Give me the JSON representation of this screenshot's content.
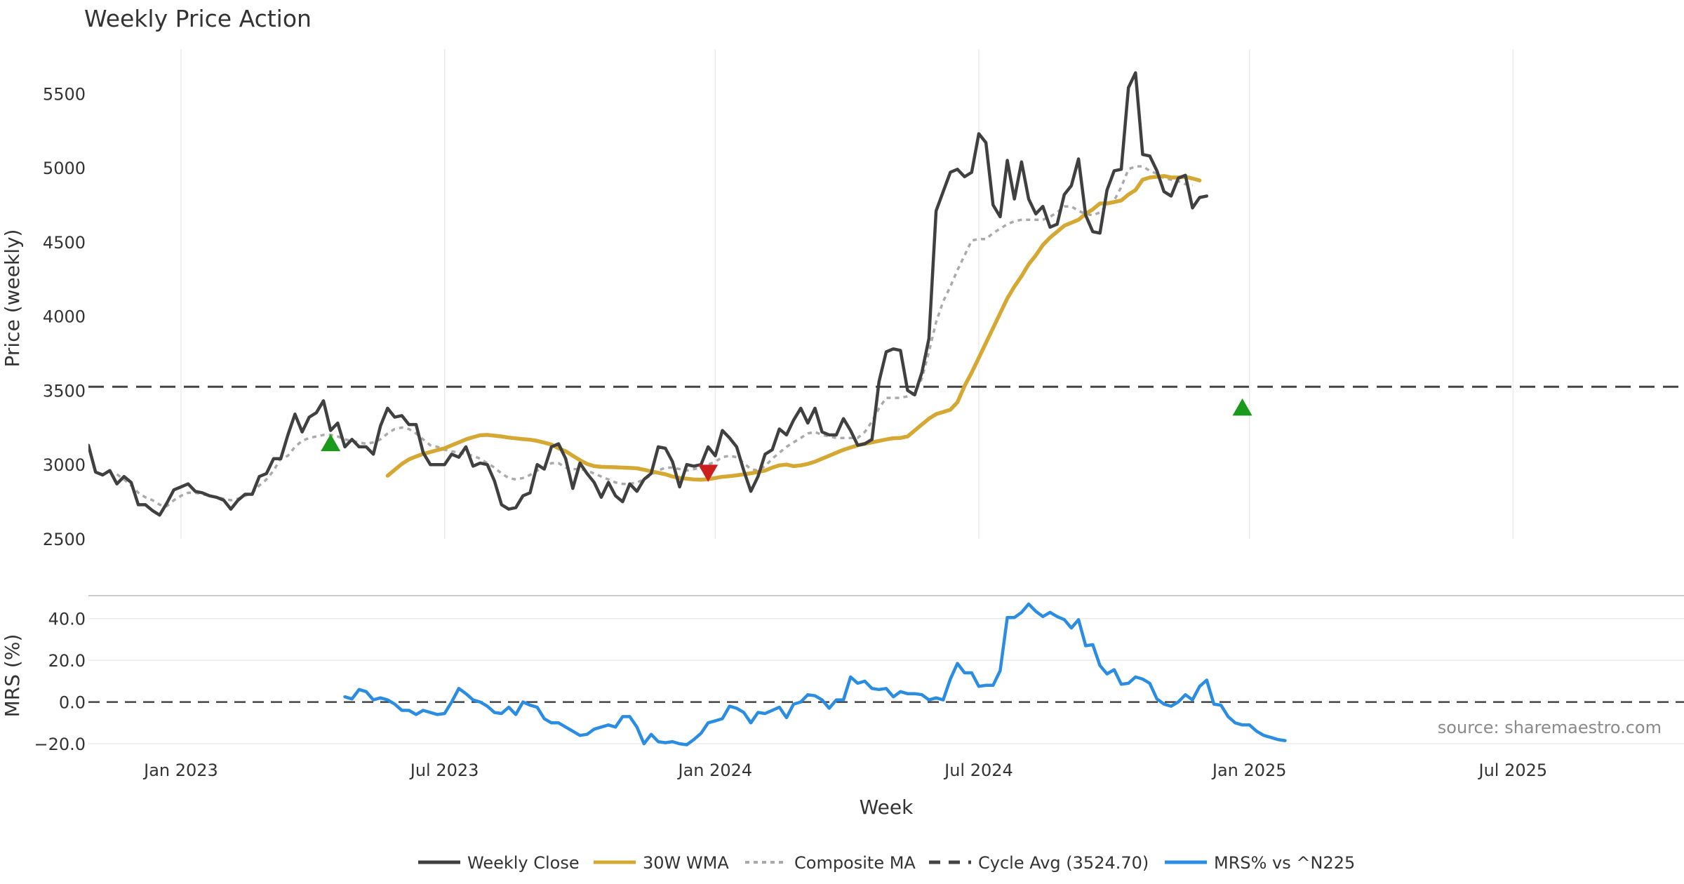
{
  "chart_data": {
    "type": "line",
    "title": "Weekly Price Action",
    "xlabel": "Week",
    "x_ticks": [
      "Jan 2023",
      "Jul 2023",
      "Jan 2024",
      "Jul 2024",
      "Jan 2025",
      "Jul 2025"
    ],
    "x_tick_weeks": [
      13,
      50,
      88,
      125,
      163,
      200
    ],
    "x_range": [
      0,
      224
    ],
    "grid": true,
    "legend_position": "bottom-center",
    "source_note": "source: sharemaestro.com",
    "price_panel": {
      "ylabel": "Price (weekly)",
      "ylim": [
        2500,
        5800
      ],
      "y_ticks": [
        2500,
        3000,
        3500,
        4000,
        4500,
        5000,
        5500
      ],
      "series": [
        {
          "name": "Weekly Close",
          "color": "#404040",
          "style": "solid",
          "start_week": 0,
          "values": [
            3130,
            2950,
            2930,
            2960,
            2870,
            2920,
            2880,
            2730,
            2730,
            2690,
            2660,
            2740,
            2830,
            2850,
            2870,
            2820,
            2810,
            2790,
            2780,
            2760,
            2700,
            2760,
            2800,
            2800,
            2920,
            2940,
            3040,
            3040,
            3200,
            3340,
            3220,
            3320,
            3350,
            3430,
            3230,
            3280,
            3120,
            3170,
            3120,
            3120,
            3070,
            3260,
            3380,
            3320,
            3330,
            3270,
            3270,
            3080,
            3000,
            3000,
            3000,
            3070,
            3050,
            3120,
            2990,
            3010,
            3000,
            2890,
            2730,
            2700,
            2710,
            2790,
            2810,
            3000,
            2970,
            3120,
            3140,
            3040,
            2840,
            3010,
            2940,
            2880,
            2780,
            2880,
            2790,
            2750,
            2870,
            2820,
            2900,
            2940,
            3120,
            3110,
            3020,
            2850,
            3000,
            2990,
            3000,
            3120,
            3060,
            3230,
            3180,
            3120,
            2960,
            2820,
            2920,
            3070,
            3100,
            3240,
            3200,
            3300,
            3380,
            3280,
            3380,
            3220,
            3200,
            3200,
            3310,
            3230,
            3130,
            3140,
            3170,
            3560,
            3760,
            3780,
            3770,
            3500,
            3470,
            3620,
            3850,
            4710,
            4840,
            4970,
            4990,
            4940,
            4970,
            5230,
            5170,
            4750,
            4670,
            5050,
            4790,
            5040,
            4790,
            4690,
            4740,
            4600,
            4620,
            4820,
            4880,
            5060,
            4680,
            4570,
            4560,
            4850,
            4980,
            4990,
            5540,
            5640,
            5090,
            5080,
            4980,
            4840,
            4810,
            4930,
            4950,
            4730,
            4800,
            4810
          ]
        },
        {
          "name": "30W WMA",
          "color": "#d4a832",
          "style": "solid",
          "start_week": 42,
          "values": [
            2925,
            2965,
            3005,
            3035,
            3055,
            3072,
            3085,
            3098,
            3110,
            3130,
            3150,
            3170,
            3185,
            3198,
            3200,
            3195,
            3190,
            3182,
            3177,
            3172,
            3168,
            3160,
            3148,
            3135,
            3110,
            3090,
            3060,
            3030,
            3005,
            2990,
            2985,
            2983,
            2982,
            2980,
            2978,
            2975,
            2965,
            2955,
            2945,
            2935,
            2920,
            2910,
            2905,
            2900,
            2898,
            2902,
            2910,
            2918,
            2922,
            2928,
            2935,
            2942,
            2950,
            2960,
            2980,
            2995,
            3000,
            2990,
            2995,
            3005,
            3020,
            3040,
            3060,
            3080,
            3100,
            3115,
            3130,
            3140,
            3150,
            3160,
            3170,
            3178,
            3180,
            3190,
            3230,
            3270,
            3310,
            3340,
            3355,
            3370,
            3420,
            3530,
            3620,
            3720,
            3820,
            3920,
            4020,
            4120,
            4200,
            4270,
            4350,
            4410,
            4480,
            4530,
            4570,
            4610,
            4630,
            4650,
            4690,
            4720,
            4760,
            4760,
            4770,
            4780,
            4820,
            4850,
            4920,
            4935,
            4940,
            4945,
            4935,
            4935,
            4940,
            4928,
            4915
          ]
        },
        {
          "name": "Composite MA",
          "color": "#aaaaaa",
          "style": "dotted",
          "start_week": 0,
          "values": [
            null,
            null,
            null,
            null,
            2935,
            2900,
            2860,
            2810,
            2780,
            2760,
            2730,
            2720,
            2760,
            2790,
            2810,
            2810,
            2800,
            2790,
            2780,
            2770,
            2760,
            2770,
            2790,
            2810,
            2860,
            2900,
            2960,
            3040,
            3060,
            3120,
            3160,
            3180,
            3190,
            3200,
            3200,
            3190,
            3170,
            3160,
            3150,
            3140,
            3150,
            3170,
            3210,
            3240,
            3250,
            3240,
            3210,
            3170,
            3130,
            3120,
            3100,
            3090,
            3080,
            3070,
            3060,
            3040,
            3010,
            2980,
            2940,
            2910,
            2900,
            2910,
            2930,
            2960,
            2980,
            3010,
            3010,
            2980,
            2970,
            2970,
            2960,
            2940,
            2920,
            2900,
            2880,
            2870,
            2870,
            2880,
            2900,
            2930,
            2960,
            2980,
            2980,
            2970,
            2960,
            2970,
            2980,
            3000,
            3020,
            3050,
            3060,
            3050,
            3010,
            2970,
            2960,
            2990,
            3040,
            3080,
            3120,
            3150,
            3180,
            3210,
            3220,
            3200,
            3190,
            3180,
            3180,
            3180,
            3180,
            3220,
            3290,
            3380,
            3450,
            3450,
            3450,
            3460,
            3480,
            3580,
            3760,
            3960,
            4100,
            4200,
            4310,
            4410,
            4510,
            4520,
            4520,
            4560,
            4590,
            4620,
            4640,
            4650,
            4650,
            4650,
            4650,
            4670,
            4700,
            4740,
            4740,
            4710,
            4690,
            4680,
            4700,
            4750,
            4780,
            4870,
            4990,
            5010,
            5010,
            4980,
            4960,
            4930,
            4920,
            4910,
            4890,
            4880
          ]
        },
        {
          "name": "Cycle Avg (3524.70)",
          "color": "#444444",
          "style": "dashed",
          "type": "hline",
          "value": 3524.7
        }
      ],
      "markers": [
        {
          "type": "buy",
          "shape": "triangle-up",
          "color": "#1a9a1a",
          "week": 34,
          "price": 3140
        },
        {
          "type": "sell",
          "shape": "triangle-down",
          "color": "#cc2020",
          "week": 87,
          "price": 2950
        },
        {
          "type": "buy",
          "shape": "triangle-up",
          "color": "#1a9a1a",
          "week": 162,
          "price": 3380
        }
      ]
    },
    "mrs_panel": {
      "ylabel": "MRS (%)",
      "ylim": [
        -22,
        50
      ],
      "y_ticks": [
        -20.0,
        0.0,
        20.0,
        40.0
      ],
      "y_tick_labels": [
        "−20.0",
        "0.0",
        "20.0",
        "40.0"
      ],
      "zero_line": {
        "value": 0,
        "style": "dashed",
        "color": "#444444"
      },
      "series": [
        {
          "name": "MRS% vs ^N225",
          "color": "#2b8de2",
          "style": "solid",
          "start_week": 36,
          "values": [
            2.5,
            1.5,
            6,
            5,
            1,
            2,
            1,
            -1,
            -4,
            -4,
            -6,
            -4,
            -5,
            -6,
            -5.5,
            0,
            6.5,
            4,
            1,
            0,
            -2,
            -5,
            -5.5,
            -2.5,
            -6,
            0,
            -1.5,
            -2.5,
            -8,
            -10,
            -10,
            -12,
            -14,
            -16,
            -15.5,
            -13,
            -12,
            -11,
            -12,
            -7,
            -7,
            -12,
            -20,
            -15.5,
            -19,
            -19.5,
            -19,
            -20,
            -20.5,
            -18,
            -15,
            -10,
            -9,
            -8,
            -2,
            -3,
            -5,
            -10,
            -5,
            -5.5,
            -4,
            -2.5,
            -7.5,
            -1,
            0,
            3.5,
            3,
            1,
            -3,
            1,
            1,
            12,
            9,
            10,
            6.5,
            6,
            6.5,
            2.5,
            5,
            4,
            4,
            3.5,
            1,
            2,
            1,
            11,
            18.5,
            14,
            14,
            7.5,
            8,
            8,
            15,
            40.5,
            40.5,
            43,
            47,
            43.5,
            41,
            43,
            41,
            39.5,
            35.5,
            39.5,
            27,
            27.5,
            17.5,
            13.5,
            15.5,
            8.5,
            9,
            12,
            11,
            9,
            1.5,
            -1,
            -2,
            0,
            3.5,
            1,
            7.5,
            10.5,
            -1,
            -1.5,
            -7,
            -10,
            -11,
            -11,
            -14,
            -16,
            -17,
            -18,
            -18.5
          ]
        }
      ]
    },
    "legend": [
      {
        "label": "Weekly Close",
        "color": "#404040",
        "style": "solid"
      },
      {
        "label": "30W WMA",
        "color": "#d4a832",
        "style": "solid"
      },
      {
        "label": "Composite MA",
        "color": "#aaaaaa",
        "style": "dotted"
      },
      {
        "label": "Cycle Avg (3524.70)",
        "color": "#444444",
        "style": "dashed"
      },
      {
        "label": "MRS% vs ^N225",
        "color": "#2b8de2",
        "style": "solid"
      }
    ]
  }
}
